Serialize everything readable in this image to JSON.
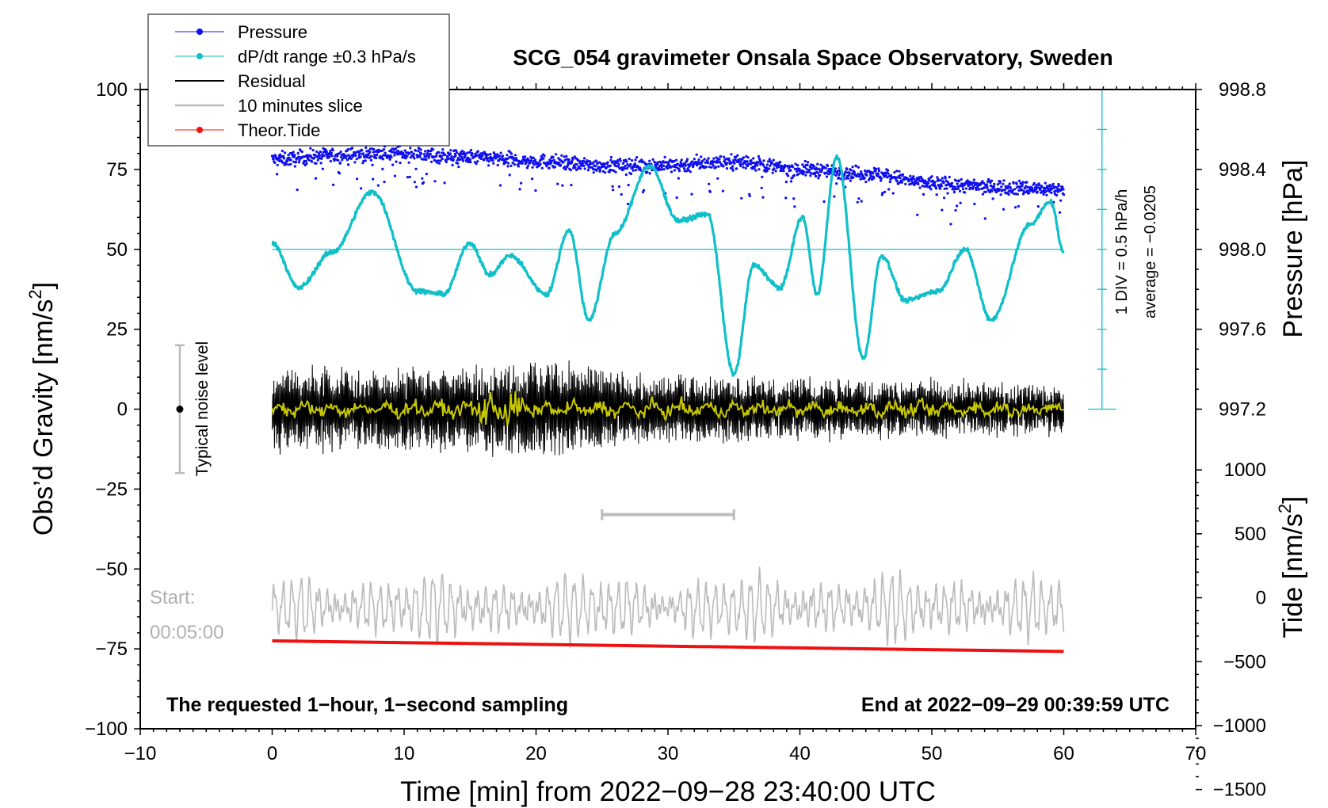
{
  "chart_data": {
    "type": "line",
    "title": "SCG_054 gravimeter Onsala Space Observatory, Sweden",
    "xlabel": "Time [min] from 2022−09−28 23:40:00 UTC",
    "ylabel_left": "Obs’d Gravity [nm/s²]",
    "ylabel_left_base": "Obs’d Gravity [nm/s",
    "ylabel_right_pressure": "Pressure [hPa]",
    "ylabel_right_tide_base": "Tide [nm/s",
    "units_close": "]",
    "superscript_2": "2",
    "xlim": [
      -10,
      70
    ],
    "ylim": [
      -100,
      100
    ],
    "x_ticks": [
      -10,
      0,
      10,
      20,
      30,
      40,
      50,
      60,
      70
    ],
    "x_tick_labels": [
      "−10",
      "0",
      "10",
      "20",
      "30",
      "40",
      "50",
      "60",
      "70"
    ],
    "y_ticks": [
      -100,
      -75,
      -50,
      -25,
      0,
      25,
      50,
      75,
      100
    ],
    "y_tick_labels": [
      "−100",
      "−75",
      "−50",
      "−25",
      "0",
      "25",
      "50",
      "75",
      "100"
    ],
    "pressure_axis": {
      "ticks": [
        997.2,
        997.6,
        998.0,
        998.4,
        998.8
      ],
      "tick_labels": [
        "997.2",
        "997.6",
        "998.0",
        "998.4",
        "998.8"
      ]
    },
    "tide_axis": {
      "ticks": [
        -1500,
        -1000,
        -500,
        0,
        500,
        1000
      ],
      "tick_labels": [
        "−1500",
        "−1000",
        "−500",
        "0",
        "500",
        "1000"
      ]
    },
    "legend": {
      "position": "top-left",
      "entries": [
        {
          "label": "Pressure",
          "color": "#1010ee",
          "marker": "dot"
        },
        {
          "label": "dP/dt range ±0.3 hPa/s",
          "color": "#10c0c8",
          "marker": "dot"
        },
        {
          "label": "Residual",
          "color": "#000000",
          "marker": "line"
        },
        {
          "label": "10 minutes slice",
          "color": "#bbbbbb",
          "marker": "line"
        },
        {
          "label": "Theor.Tide",
          "color": "#ee1111",
          "marker": "dot"
        }
      ]
    },
    "series": [
      {
        "name": "Pressure",
        "color": "#1010ee",
        "axis": "pressure_hPa",
        "x": [
          0,
          5,
          10,
          15,
          20,
          25,
          30,
          35,
          40,
          45,
          50,
          55,
          60
        ],
        "y": [
          998.45,
          998.47,
          998.48,
          998.46,
          998.44,
          998.42,
          998.42,
          998.44,
          998.4,
          998.38,
          998.33,
          998.31,
          998.3
        ]
      },
      {
        "name": "dP/dt",
        "color": "#10c0c8",
        "axis": "gravity",
        "x": [
          0,
          2,
          4.5,
          7.6,
          11,
          13,
          15,
          16.5,
          18,
          20.8,
          22.5,
          24,
          26,
          28.6,
          30.8,
          33,
          35,
          36.5,
          38.5,
          40.2,
          41.3,
          42.8,
          44.8,
          46.2,
          48,
          50.5,
          52.5,
          54.5,
          57.5,
          59,
          60
        ],
        "y": [
          52,
          38,
          49,
          68,
          37,
          36,
          52,
          42,
          48,
          36,
          56,
          28,
          55,
          76,
          59,
          61,
          11,
          45,
          38,
          60,
          36,
          79,
          16,
          48,
          34,
          37,
          50,
          28,
          58,
          65,
          49
        ]
      },
      {
        "name": "Residual",
        "color": "#000000",
        "axis": "gravity",
        "envelope": {
          "x": [
            0,
            10,
            20,
            30,
            40,
            50,
            60
          ],
          "amplitude": [
            14,
            13,
            16,
            11,
            10,
            9,
            8
          ]
        }
      },
      {
        "name": "Residual (smoothed)",
        "color": "#c8c800",
        "axis": "gravity",
        "center": 0
      },
      {
        "name": "10 minutes slice",
        "color": "#bbbbbb",
        "axis": "gravity",
        "center": -62,
        "amplitude": 8
      },
      {
        "name": "Theor.Tide",
        "color": "#ee1111",
        "axis": "gravity",
        "x": [
          0,
          60
        ],
        "y": [
          -72.5,
          -75.8
        ]
      }
    ],
    "pressure_avg_line": 998.0,
    "pressure_scale_bar": {
      "x": 62.9,
      "y_top": 100,
      "y_bottom": 0
    },
    "slice_marker": {
      "x_start": 25,
      "x_end": 35,
      "y": -33
    },
    "noise_level": {
      "x": -7,
      "y": 0,
      "half_range": 20,
      "label": "Typical noise level"
    },
    "annotations": {
      "scale_div": "1 DIV = 0.5 hPa/h",
      "scale_avg": "average = −0.0205",
      "start_label": "Start:",
      "start_time": "00:05:00",
      "bottom_left": "The requested 1−hour, 1−second sampling",
      "bottom_right": "End at 2022−09−29 00:39:59 UTC"
    }
  }
}
